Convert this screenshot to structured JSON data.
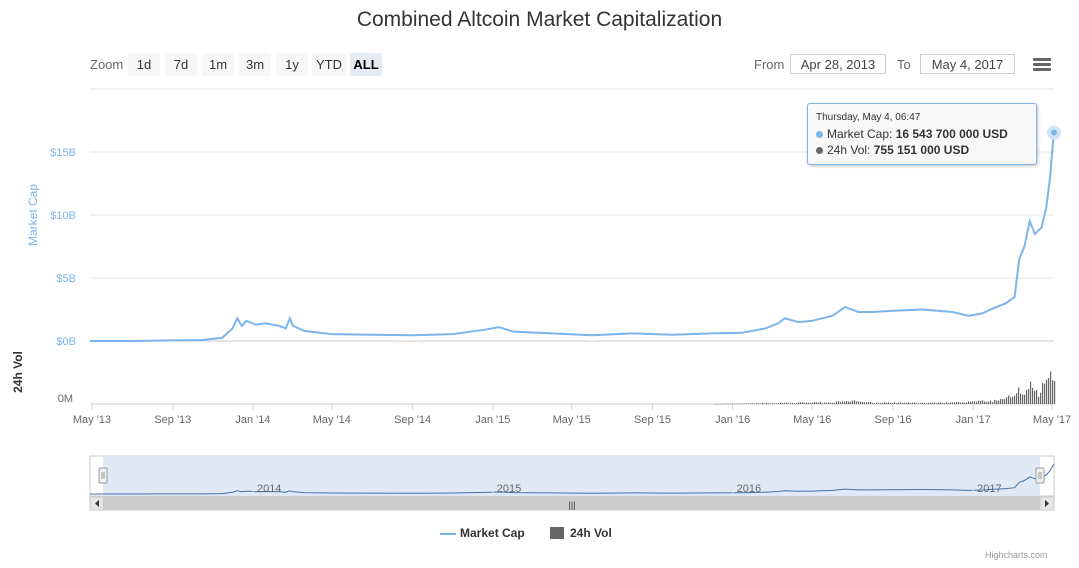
{
  "chart": {
    "title": "Combined Altcoin Market Capitalization",
    "credits": "Highcharts.com"
  },
  "toolbar": {
    "zoom_label": "Zoom",
    "zoom_buttons": [
      "1d",
      "7d",
      "1m",
      "3m",
      "1y",
      "YTD",
      "ALL"
    ],
    "active_zoom": "ALL",
    "from_label": "From",
    "from_value": "Apr 28, 2013",
    "to_label": "To",
    "to_value": "May 4, 2017",
    "menu_icon": "hamburger-menu-icon"
  },
  "tooltip": {
    "date": "Thursday, May 4, 06:47",
    "market_cap_label": "Market Cap:",
    "market_cap_value": "16 543 700 000 USD",
    "vol_label": "24h Vol:",
    "vol_value": "755 151 000 USD"
  },
  "legend": {
    "market_cap": "Market Cap",
    "vol": "24h Vol"
  },
  "colors": {
    "market_cap": "#7cb5ec",
    "vol": "#666666",
    "navigator_fill": "#dde8f5"
  },
  "navigator": {
    "labels": [
      "2014",
      "2015",
      "2016",
      "2017"
    ],
    "scroll_grip": "|||"
  },
  "chart_data": {
    "type": "line",
    "title": "Combined Altcoin Market Capitalization",
    "x_range": [
      "2013-04-28",
      "2017-05-04"
    ],
    "x_ticks": [
      "May '13",
      "Sep '13",
      "Jan '14",
      "May '14",
      "Sep '14",
      "Jan '15",
      "May '15",
      "Sep '15",
      "Jan '16",
      "May '16",
      "Sep '16",
      "Jan '17",
      "May '17"
    ],
    "y_axes": [
      {
        "label": "Market Cap",
        "ticks": [
          "$0B",
          "$5B",
          "$10B",
          "$15B"
        ],
        "range": [
          0,
          20
        ]
      },
      {
        "label": "24h Vol",
        "ticks": [
          "0M"
        ],
        "range": [
          0,
          800
        ]
      }
    ],
    "series": [
      {
        "name": "Market Cap",
        "unit": "billion USD",
        "points": [
          [
            "2013-04-28",
            0.0
          ],
          [
            "2013-07-01",
            0.0
          ],
          [
            "2013-09-01",
            0.05
          ],
          [
            "2013-10-15",
            0.08
          ],
          [
            "2013-11-15",
            0.25
          ],
          [
            "2013-12-01",
            1.0
          ],
          [
            "2013-12-08",
            1.8
          ],
          [
            "2013-12-15",
            1.2
          ],
          [
            "2013-12-22",
            1.6
          ],
          [
            "2014-01-05",
            1.3
          ],
          [
            "2014-01-20",
            1.4
          ],
          [
            "2014-02-10",
            1.2
          ],
          [
            "2014-02-20",
            1.0
          ],
          [
            "2014-02-26",
            1.8
          ],
          [
            "2014-03-03",
            1.2
          ],
          [
            "2014-03-20",
            0.8
          ],
          [
            "2014-05-01",
            0.55
          ],
          [
            "2014-07-01",
            0.5
          ],
          [
            "2014-09-01",
            0.45
          ],
          [
            "2014-11-01",
            0.55
          ],
          [
            "2014-12-20",
            0.9
          ],
          [
            "2015-01-10",
            1.1
          ],
          [
            "2015-02-01",
            0.75
          ],
          [
            "2015-04-01",
            0.6
          ],
          [
            "2015-06-01",
            0.45
          ],
          [
            "2015-08-01",
            0.6
          ],
          [
            "2015-10-01",
            0.5
          ],
          [
            "2015-12-01",
            0.6
          ],
          [
            "2016-01-15",
            0.65
          ],
          [
            "2016-02-20",
            1.0
          ],
          [
            "2016-03-10",
            1.4
          ],
          [
            "2016-03-20",
            1.8
          ],
          [
            "2016-04-10",
            1.5
          ],
          [
            "2016-05-01",
            1.6
          ],
          [
            "2016-06-01",
            2.0
          ],
          [
            "2016-06-20",
            2.7
          ],
          [
            "2016-07-10",
            2.3
          ],
          [
            "2016-08-01",
            2.3
          ],
          [
            "2016-09-01",
            2.4
          ],
          [
            "2016-10-15",
            2.5
          ],
          [
            "2016-12-01",
            2.3
          ],
          [
            "2016-12-25",
            2.0
          ],
          [
            "2017-01-15",
            2.2
          ],
          [
            "2017-02-01",
            2.6
          ],
          [
            "2017-02-20",
            3.0
          ],
          [
            "2017-03-05",
            3.5
          ],
          [
            "2017-03-12",
            6.5
          ],
          [
            "2017-03-20",
            7.5
          ],
          [
            "2017-03-28",
            9.5
          ],
          [
            "2017-04-05",
            8.5
          ],
          [
            "2017-04-15",
            9.0
          ],
          [
            "2017-04-22",
            10.5
          ],
          [
            "2017-04-28",
            13.0
          ],
          [
            "2017-05-02",
            15.5
          ],
          [
            "2017-05-04",
            16.5437
          ]
        ]
      },
      {
        "name": "24h Vol",
        "unit": "million USD",
        "points": [
          [
            "2013-04-28",
            0
          ],
          [
            "2015-12-01",
            0
          ],
          [
            "2016-03-01",
            20
          ],
          [
            "2016-06-01",
            35
          ],
          [
            "2016-07-01",
            60
          ],
          [
            "2016-08-01",
            30
          ],
          [
            "2016-10-01",
            25
          ],
          [
            "2016-12-01",
            30
          ],
          [
            "2017-01-01",
            50
          ],
          [
            "2017-02-15",
            80
          ],
          [
            "2017-03-10",
            300
          ],
          [
            "2017-03-20",
            250
          ],
          [
            "2017-04-01",
            420
          ],
          [
            "2017-04-10",
            200
          ],
          [
            "2017-04-20",
            500
          ],
          [
            "2017-04-28",
            600
          ],
          [
            "2017-05-04",
            755.151
          ]
        ]
      }
    ],
    "legend_position": "bottom-center",
    "grid": true
  }
}
